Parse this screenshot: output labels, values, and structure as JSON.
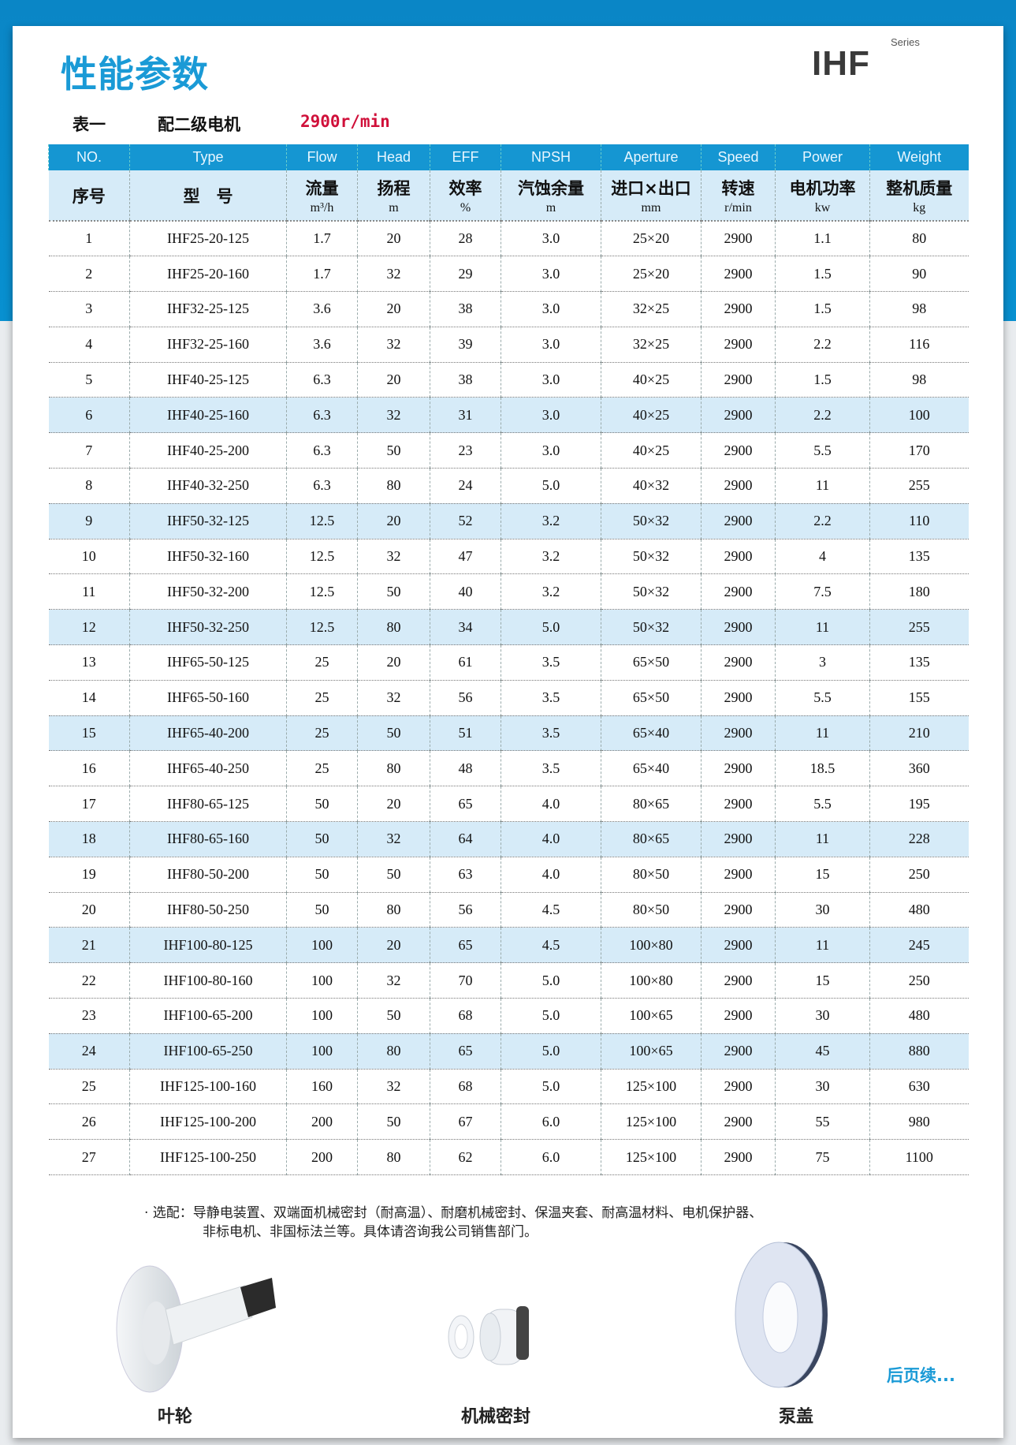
{
  "header": {
    "title": "性能参数",
    "logo": "IHF",
    "logo_sub": "Series"
  },
  "table_caption": {
    "label": "表一",
    "motor": "配二级电机",
    "speed": "2900r/min"
  },
  "columns": [
    {
      "en": "NO.",
      "cn": "序号",
      "unit": ""
    },
    {
      "en": "Type",
      "cn": "型　号",
      "unit": ""
    },
    {
      "en": "Flow",
      "cn": "流量",
      "unit": "m³/h"
    },
    {
      "en": "Head",
      "cn": "扬程",
      "unit": "m"
    },
    {
      "en": "EFF",
      "cn": "效率",
      "unit": "%"
    },
    {
      "en": "NPSH",
      "cn": "汽蚀余量",
      "unit": "m"
    },
    {
      "en": "Aperture",
      "cn": "进口×出口",
      "unit": "mm"
    },
    {
      "en": "Speed",
      "cn": "转速",
      "unit": "r/min"
    },
    {
      "en": "Power",
      "cn": "电机功率",
      "unit": "kw"
    },
    {
      "en": "Weight",
      "cn": "整机质量",
      "unit": "kg"
    }
  ],
  "rows": [
    [
      "1",
      "IHF25-20-125",
      "1.7",
      "20",
      "28",
      "3.0",
      "25×20",
      "2900",
      "1.1",
      "80"
    ],
    [
      "2",
      "IHF25-20-160",
      "1.7",
      "32",
      "29",
      "3.0",
      "25×20",
      "2900",
      "1.5",
      "90"
    ],
    [
      "3",
      "IHF32-25-125",
      "3.6",
      "20",
      "38",
      "3.0",
      "32×25",
      "2900",
      "1.5",
      "98"
    ],
    [
      "4",
      "IHF32-25-160",
      "3.6",
      "32",
      "39",
      "3.0",
      "32×25",
      "2900",
      "2.2",
      "116"
    ],
    [
      "5",
      "IHF40-25-125",
      "6.3",
      "20",
      "38",
      "3.0",
      "40×25",
      "2900",
      "1.5",
      "98"
    ],
    [
      "6",
      "IHF40-25-160",
      "6.3",
      "32",
      "31",
      "3.0",
      "40×25",
      "2900",
      "2.2",
      "100"
    ],
    [
      "7",
      "IHF40-25-200",
      "6.3",
      "50",
      "23",
      "3.0",
      "40×25",
      "2900",
      "5.5",
      "170"
    ],
    [
      "8",
      "IHF40-32-250",
      "6.3",
      "80",
      "24",
      "5.0",
      "40×32",
      "2900",
      "11",
      "255"
    ],
    [
      "9",
      "IHF50-32-125",
      "12.5",
      "20",
      "52",
      "3.2",
      "50×32",
      "2900",
      "2.2",
      "110"
    ],
    [
      "10",
      "IHF50-32-160",
      "12.5",
      "32",
      "47",
      "3.2",
      "50×32",
      "2900",
      "4",
      "135"
    ],
    [
      "11",
      "IHF50-32-200",
      "12.5",
      "50",
      "40",
      "3.2",
      "50×32",
      "2900",
      "7.5",
      "180"
    ],
    [
      "12",
      "IHF50-32-250",
      "12.5",
      "80",
      "34",
      "5.0",
      "50×32",
      "2900",
      "11",
      "255"
    ],
    [
      "13",
      "IHF65-50-125",
      "25",
      "20",
      "61",
      "3.5",
      "65×50",
      "2900",
      "3",
      "135"
    ],
    [
      "14",
      "IHF65-50-160",
      "25",
      "32",
      "56",
      "3.5",
      "65×50",
      "2900",
      "5.5",
      "155"
    ],
    [
      "15",
      "IHF65-40-200",
      "25",
      "50",
      "51",
      "3.5",
      "65×40",
      "2900",
      "11",
      "210"
    ],
    [
      "16",
      "IHF65-40-250",
      "25",
      "80",
      "48",
      "3.5",
      "65×40",
      "2900",
      "18.5",
      "360"
    ],
    [
      "17",
      "IHF80-65-125",
      "50",
      "20",
      "65",
      "4.0",
      "80×65",
      "2900",
      "5.5",
      "195"
    ],
    [
      "18",
      "IHF80-65-160",
      "50",
      "32",
      "64",
      "4.0",
      "80×65",
      "2900",
      "11",
      "228"
    ],
    [
      "19",
      "IHF80-50-200",
      "50",
      "50",
      "63",
      "4.0",
      "80×50",
      "2900",
      "15",
      "250"
    ],
    [
      "20",
      "IHF80-50-250",
      "50",
      "80",
      "56",
      "4.5",
      "80×50",
      "2900",
      "30",
      "480"
    ],
    [
      "21",
      "IHF100-80-125",
      "100",
      "20",
      "65",
      "4.5",
      "100×80",
      "2900",
      "11",
      "245"
    ],
    [
      "22",
      "IHF100-80-160",
      "100",
      "32",
      "70",
      "5.0",
      "100×80",
      "2900",
      "15",
      "250"
    ],
    [
      "23",
      "IHF100-65-200",
      "100",
      "50",
      "68",
      "5.0",
      "100×65",
      "2900",
      "30",
      "480"
    ],
    [
      "24",
      "IHF100-65-250",
      "100",
      "80",
      "65",
      "5.0",
      "100×65",
      "2900",
      "45",
      "880"
    ],
    [
      "25",
      "IHF125-100-160",
      "160",
      "32",
      "68",
      "5.0",
      "125×100",
      "2900",
      "30",
      "630"
    ],
    [
      "26",
      "IHF125-100-200",
      "200",
      "50",
      "67",
      "6.0",
      "125×100",
      "2900",
      "55",
      "980"
    ],
    [
      "27",
      "IHF125-100-250",
      "200",
      "80",
      "62",
      "6.0",
      "125×100",
      "2900",
      "75",
      "1100"
    ]
  ],
  "highlight_rows": [
    6,
    9,
    12,
    15,
    18,
    21,
    24
  ],
  "colors": {
    "accent": "#1596d2",
    "highlight": "#d6ebf8",
    "speed": "#d0103a"
  },
  "options": {
    "line1": "· 选配：导静电装置、双端面机械密封（耐高温）、耐磨机械密封、保温夹套、耐高温材料、电机保护器、",
    "line2": "非标电机、非国标法兰等。具体请咨询我公司销售部门。"
  },
  "parts": [
    {
      "label": "叶轮",
      "icon": "impeller-image"
    },
    {
      "label": "机械密封",
      "icon": "mechanical-seal-image"
    },
    {
      "label": "泵盖",
      "icon": "pump-cover-image"
    }
  ],
  "continued": "后页续..."
}
